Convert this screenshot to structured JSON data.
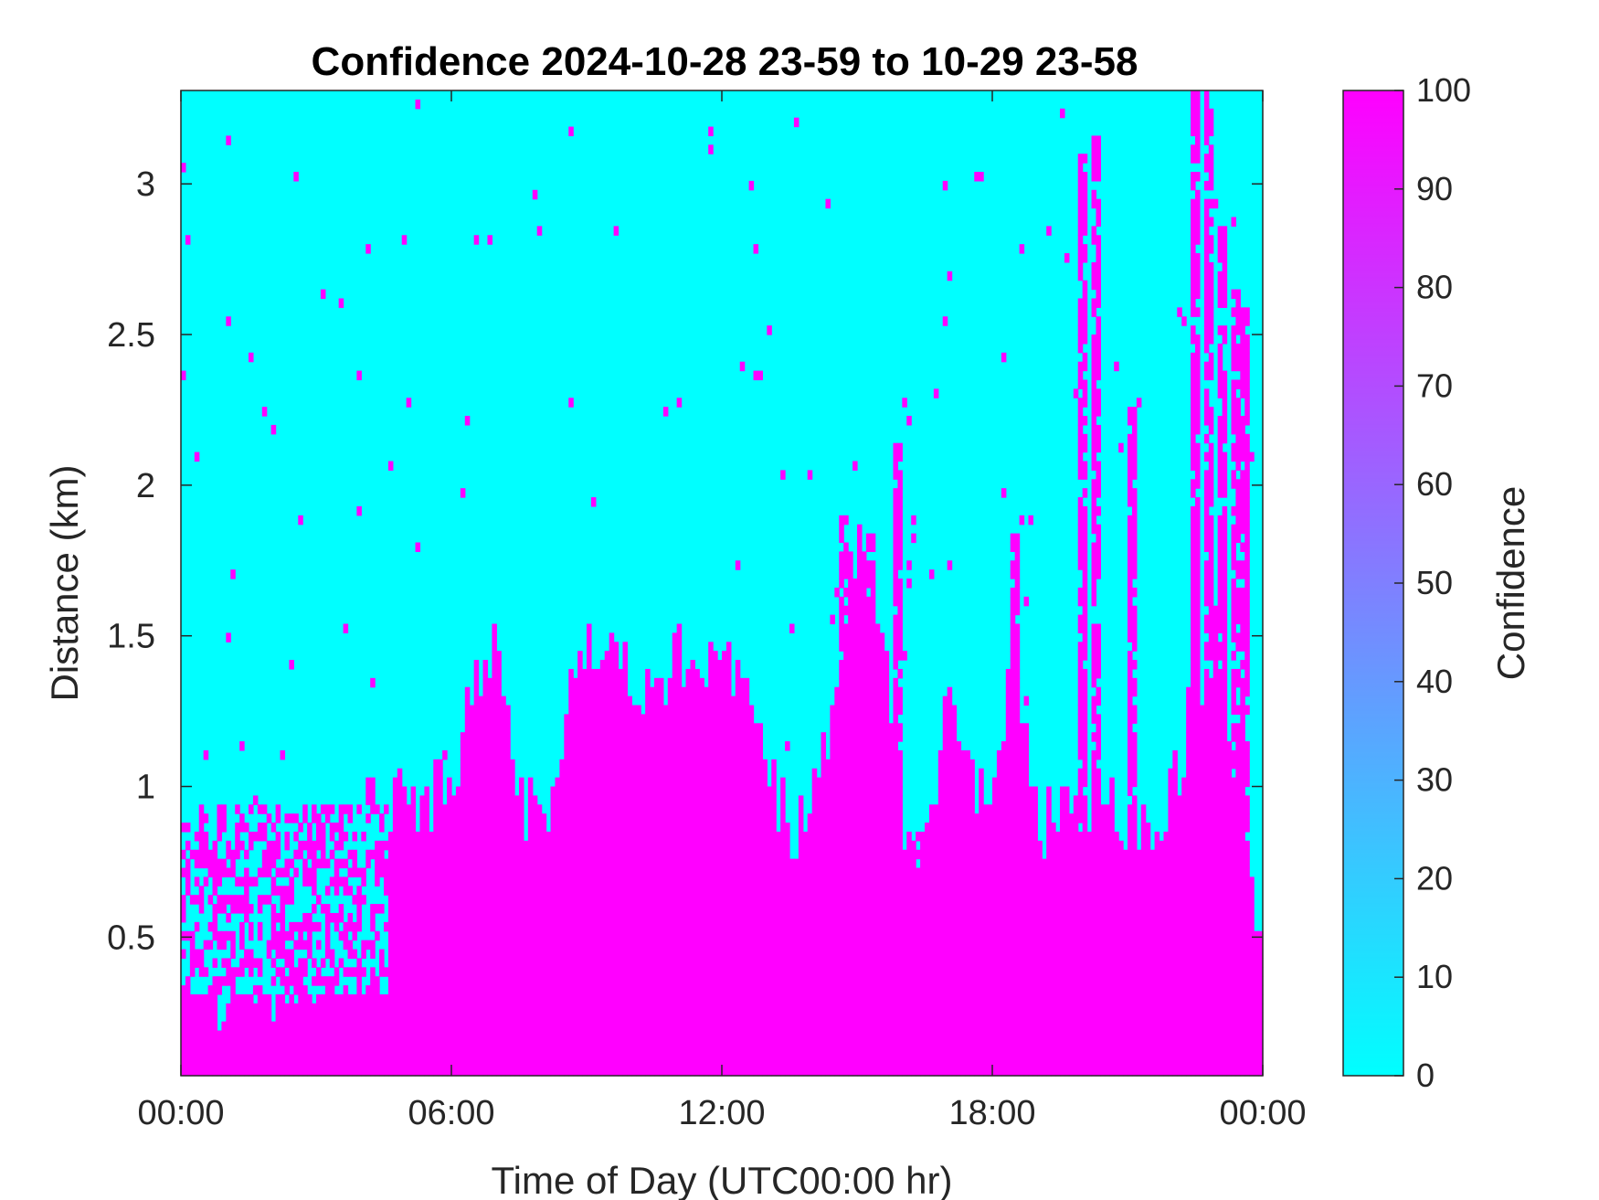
{
  "chart_data": {
    "type": "heatmap",
    "title": "Confidence 2024-10-28 23-59 to 10-29 23-58",
    "xlabel": "Time of Day (UTC00:00 hr)",
    "ylabel": "Distance (km)",
    "x_tick_labels": [
      "00:00",
      "06:00",
      "12:00",
      "18:00",
      "00:00"
    ],
    "x_ticks_hours": [
      0,
      6,
      12,
      18,
      24
    ],
    "xlim_hours": [
      0,
      24
    ],
    "y_tick_labels": [
      "0.5",
      "1",
      "1.5",
      "2",
      "2.5",
      "3"
    ],
    "y_ticks": [
      0.5,
      1,
      1.5,
      2,
      2.5,
      3
    ],
    "ylim_km": [
      0.04,
      3.31
    ],
    "colorbar": {
      "label": "Confidence",
      "ticks": [
        0,
        10,
        20,
        30,
        40,
        50,
        60,
        70,
        80,
        90,
        100
      ],
      "tick_labels": [
        "0",
        "10",
        "20",
        "30",
        "40",
        "50",
        "60",
        "70",
        "80",
        "90",
        "100"
      ],
      "range": [
        0,
        100
      ],
      "color_low": "#00ffff",
      "color_high": "#ff00ff"
    },
    "values_present": [
      0,
      100
    ],
    "cell_size": {
      "hours": 0.1,
      "km": 0.03
    },
    "high_confidence_region_top_km": {
      "hours": [
        0,
        1,
        2,
        3,
        4,
        4.5,
        4.6,
        5,
        6,
        6.5,
        7,
        7.5,
        8,
        8.5,
        9,
        9.5,
        10,
        10.5,
        11,
        11.5,
        12,
        12.5,
        13,
        13.5,
        14,
        14.5,
        15,
        15.5,
        16,
        16.5,
        17,
        17.5,
        18,
        18.5,
        19,
        19.5,
        20,
        20.5,
        21,
        21.5,
        22,
        22.5,
        23,
        23.5,
        23.8,
        24
      ],
      "km": [
        0.3,
        0.3,
        0.35,
        0.4,
        0.9,
        0.9,
        0.95,
        0.95,
        1.0,
        1.35,
        1.5,
        0.95,
        0.9,
        1.15,
        1.5,
        1.45,
        1.35,
        1.25,
        1.5,
        1.35,
        1.5,
        1.3,
        1.05,
        0.85,
        0.9,
        1.3,
        1.8,
        1.6,
        0.85,
        0.85,
        1.25,
        1.0,
        0.9,
        1.55,
        0.85,
        0.9,
        0.95,
        0.95,
        0.9,
        0.85,
        1.0,
        1.3,
        1.5,
        0.9,
        0.6,
        0.6
      ]
    },
    "transition_band_km": [
      0.3,
      0.95
    ],
    "transition_band_hours": [
      0,
      4.6
    ],
    "columns_high_confidence_to_km": [
      {
        "hour": 14.7,
        "km": 1.9
      },
      {
        "hour": 15.3,
        "km": 1.85
      },
      {
        "hour": 15.9,
        "km": 2.15
      },
      {
        "hour": 18.5,
        "km": 1.85
      },
      {
        "hour": 20.0,
        "km": 3.1
      },
      {
        "hour": 20.3,
        "km": 3.15
      },
      {
        "hour": 21.1,
        "km": 2.25
      },
      {
        "hour": 22.5,
        "km": 3.31
      },
      {
        "hour": 22.8,
        "km": 3.31
      },
      {
        "hour": 23.1,
        "km": 2.85
      },
      {
        "hour": 23.4,
        "km": 2.65
      },
      {
        "hour": 23.6,
        "km": 2.6
      }
    ]
  }
}
